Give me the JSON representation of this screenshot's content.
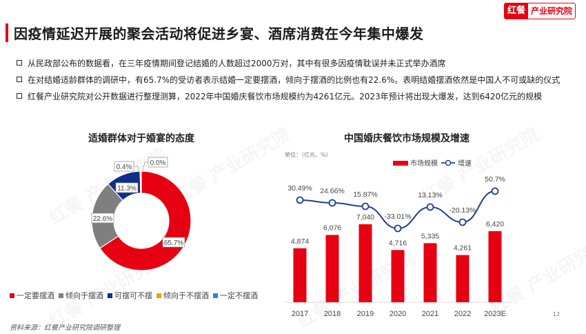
{
  "header": {
    "title": "因疫情延迟开展的聚会活动将促进乡宴、酒席消费在今年集中爆发",
    "logo_red": "红餐",
    "logo_white": "产业研究院"
  },
  "bullets": [
    "从民政部公布的数据看，在三年疫情期间登记结婚的人数超过2000万对，其中有很多因疫情耽误并未正式举办酒席",
    "在对结婚适龄群体的调研中，有65.7%的受访者表示结婚一定要摆酒，倾向于摆酒的比例也有22.6%。表明结婚摆酒依然是中国人不可或缺的仪式",
    "红餐产业研究院对公开数据进行整理测算，2022年中国婚庆餐饮市场规模约为4261亿元。2023年预计将出现大爆发，达到6420亿元的规模"
  ],
  "donut": {
    "title": "适婚群体对于婚宴的态度",
    "labels": [
      "65.7%",
      "22.6%",
      "11.3%",
      "0.4%",
      "0.0%"
    ],
    "legend": [
      {
        "label": "一定要摆酒",
        "color": "#e60012"
      },
      {
        "label": "倾向于摆酒",
        "color": "#7f7f7f"
      },
      {
        "label": "可摆可不摆",
        "color": "#0d2f8c"
      },
      {
        "label": "倾向于不摆酒",
        "color": "#f0a30a"
      },
      {
        "label": "一定不摆酒",
        "color": "#1f8fc9"
      }
    ]
  },
  "bar": {
    "title": "中国婚庆餐饮市场规模及增速",
    "unit": "单位：（亿元，%）",
    "legend_bar": "市场规模",
    "legend_line": "增速",
    "categories": [
      "2017",
      "2018",
      "2019",
      "2020",
      "2021",
      "2022",
      "2023E"
    ],
    "value_labels": [
      "4,874",
      "6,076",
      "7,040",
      "4,716",
      "5,335",
      "4,261",
      "6,420"
    ],
    "growth_labels": [
      "30.49%",
      "24.66%",
      "15.87%",
      "-33.01%",
      "13.13%",
      "-20.13%",
      "50.7%"
    ]
  },
  "chart_data": [
    {
      "type": "pie",
      "title": "适婚群体对于婚宴的态度",
      "categories": [
        "一定要摆酒",
        "倾向于摆酒",
        "可摆可不摆",
        "倾向于不摆酒",
        "一定不摆酒"
      ],
      "values": [
        65.7,
        22.6,
        11.3,
        0.4,
        0.0
      ],
      "colors": [
        "#e60012",
        "#7f7f7f",
        "#0d2f8c",
        "#f0a30a",
        "#1f8fc9"
      ],
      "donut": true,
      "legend_position": "bottom"
    },
    {
      "type": "bar",
      "title": "中国婚庆餐饮市场规模及增速",
      "unit": "单位：（亿元，%）",
      "categories": [
        "2017",
        "2018",
        "2019",
        "2020",
        "2021",
        "2022",
        "2023E"
      ],
      "series": [
        {
          "name": "市场规模",
          "type": "bar",
          "color": "#e60012",
          "values": [
            4874,
            6076,
            7040,
            4716,
            5335,
            4261,
            6420
          ]
        },
        {
          "name": "增速",
          "type": "line",
          "color": "#1f3f8f",
          "values": [
            30.49,
            24.66,
            15.87,
            -33.01,
            13.13,
            -20.13,
            50.7
          ]
        }
      ],
      "legend_position": "top",
      "grid": false
    }
  ],
  "footer": {
    "source": "资料来源：红餐产业研究院调研整理",
    "page": "12"
  }
}
